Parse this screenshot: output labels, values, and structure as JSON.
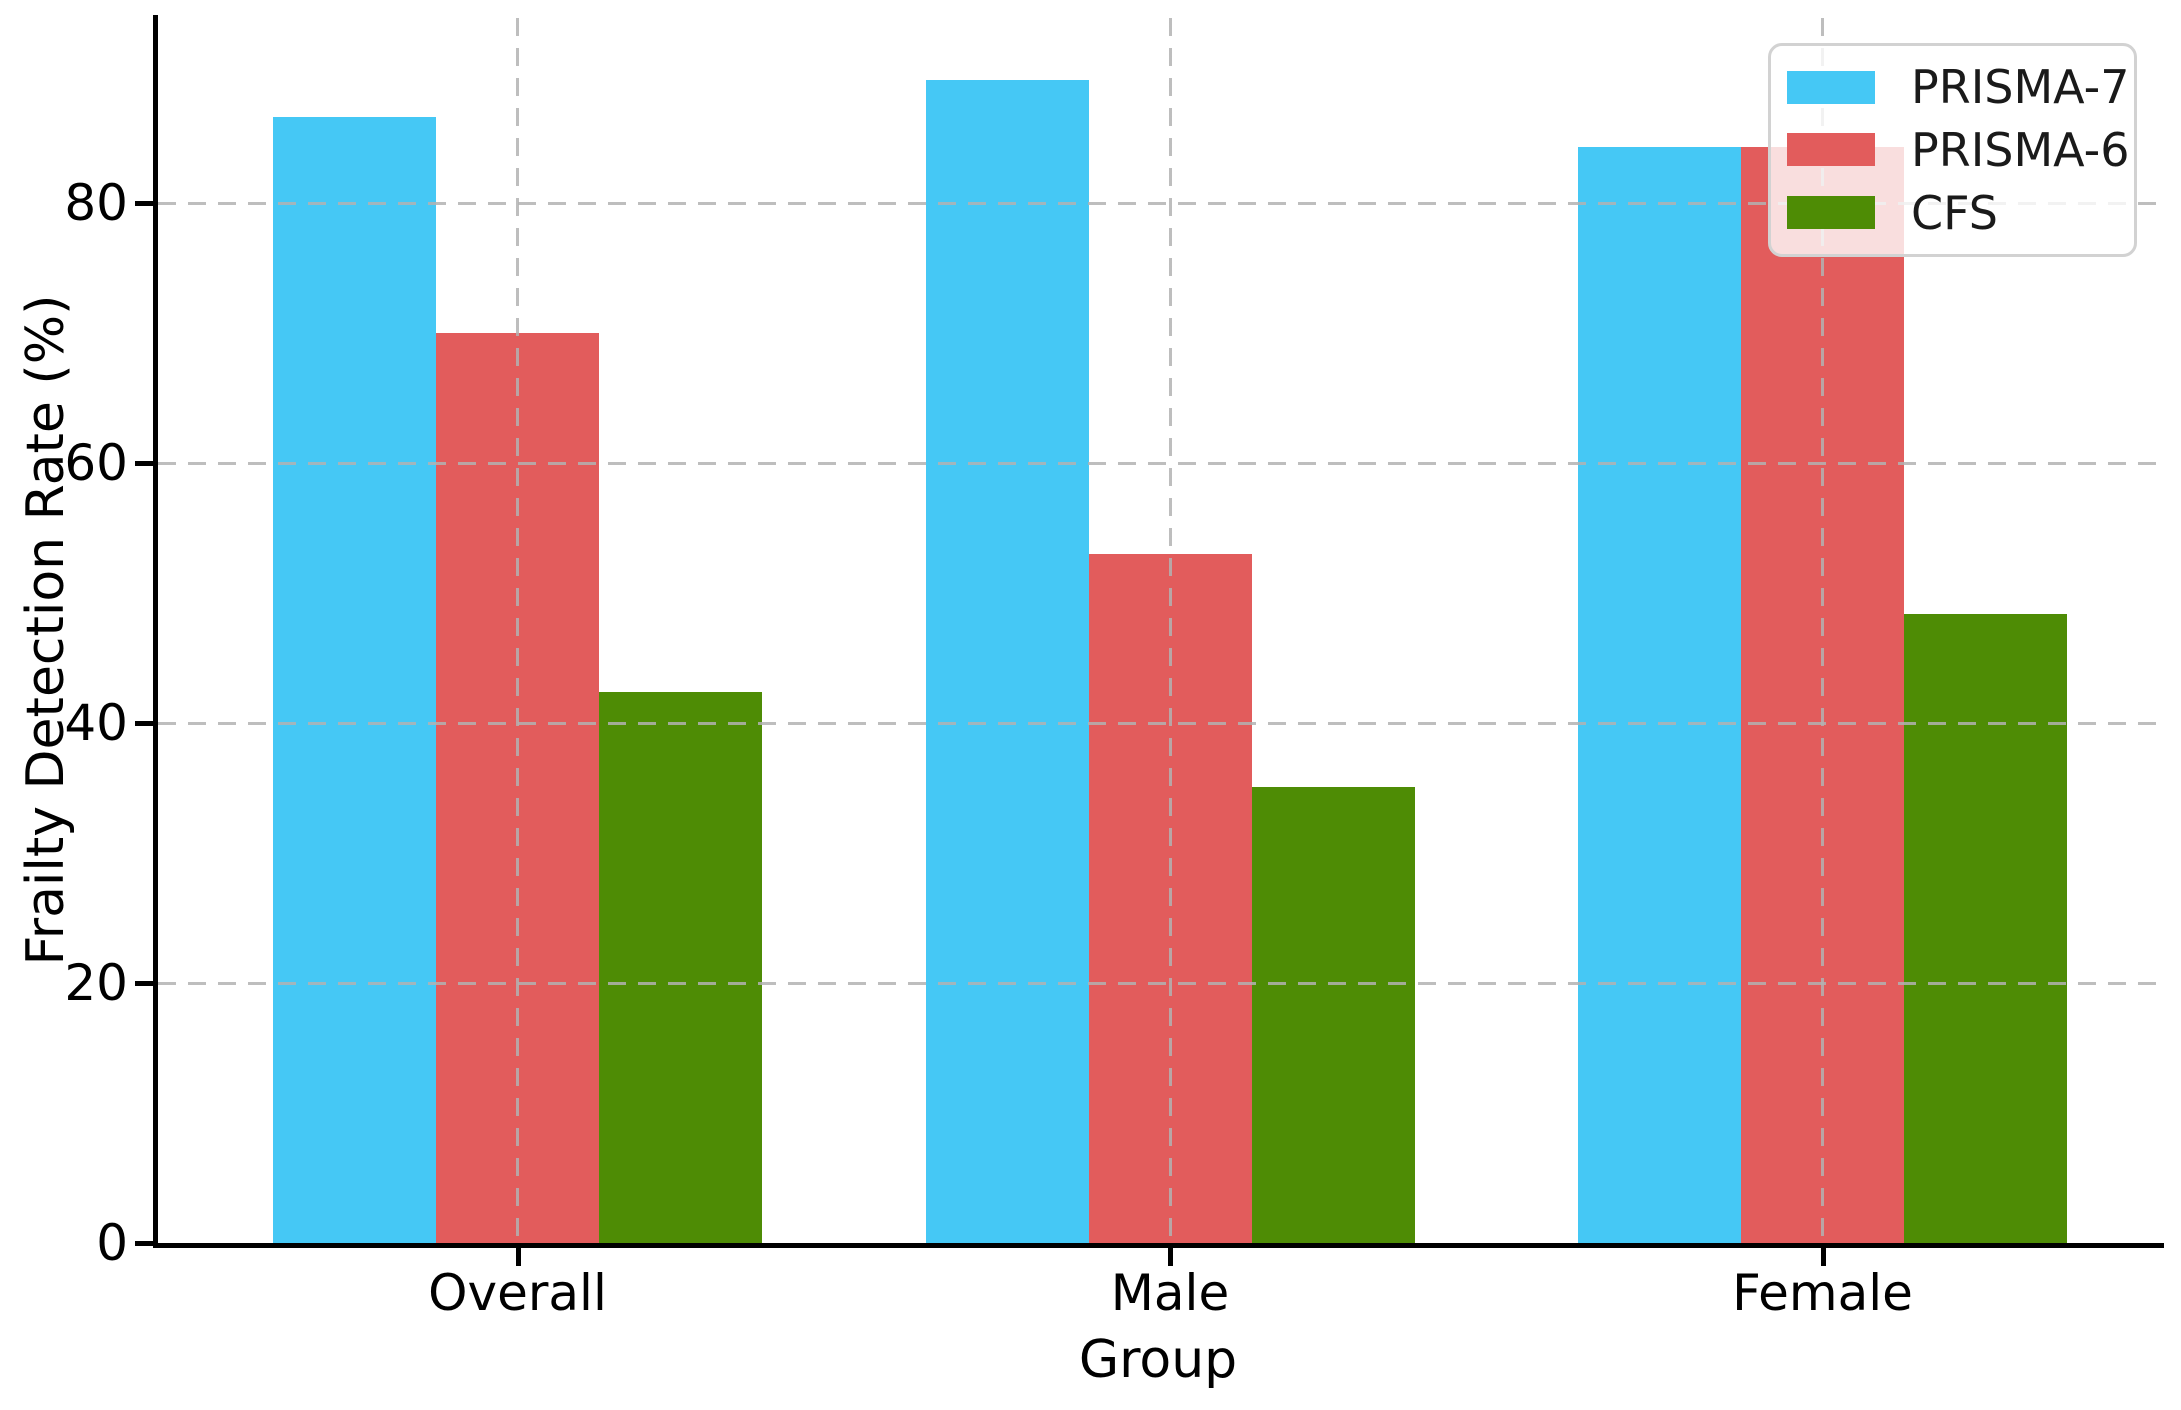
{
  "chart_data": {
    "type": "bar",
    "title": "",
    "categories": [
      "Overall",
      "Male",
      "Female"
    ],
    "series": [
      {
        "name": "PRISMA-7",
        "color": "#45C8F5",
        "values": [
          86.6,
          89.5,
          84.3
        ]
      },
      {
        "name": "PRISMA-6",
        "color": "#E25C5C",
        "values": [
          70.0,
          53.0,
          84.3
        ]
      },
      {
        "name": "CFS",
        "color": "#4E8C05",
        "values": [
          42.4,
          35.1,
          48.4
        ]
      }
    ],
    "xlabel": "Group",
    "ylabel": "Frailty Detection Rate (%)",
    "yticks": [
      0,
      20,
      40,
      60,
      80
    ],
    "ylim": [
      0,
      94.2
    ],
    "grid": true,
    "grid_style": "dashed",
    "grid_color": "#b2b2b2",
    "axis_color": "#000000",
    "legend_position": "upper right"
  }
}
